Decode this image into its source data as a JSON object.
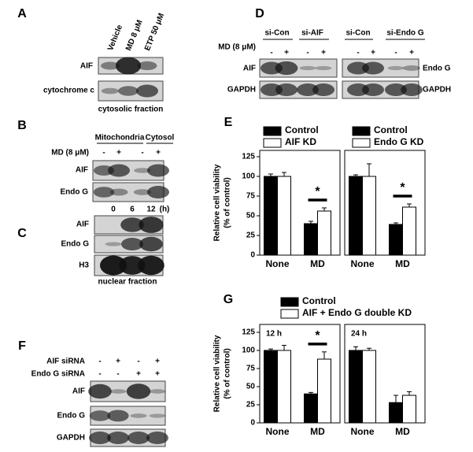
{
  "panels": {
    "A": {
      "label": "A",
      "lanes": [
        "Vehicle",
        "MD 8 μM",
        "ETP 50 μM"
      ],
      "rows": [
        "AIF",
        "cytochrome c"
      ],
      "footer": "cytosolic  fraction"
    },
    "B": {
      "label": "B",
      "groups": [
        "Mitochondria",
        "Cytosol"
      ],
      "treatment": "MD (8 μM)",
      "signs": [
        "-",
        "+",
        "-",
        "+"
      ],
      "rows": [
        "AIF",
        "Endo G"
      ]
    },
    "C": {
      "label": "C",
      "times": [
        0,
        6,
        12
      ],
      "unit": "(h)",
      "rows": [
        "AIF",
        "Endo G",
        "H3"
      ],
      "footer": "nuclear fraction"
    },
    "D": {
      "label": "D",
      "groups": [
        "si-Con",
        "si-AIF",
        "si-Con",
        "si-Endo G"
      ],
      "treatment": "MD (8 μM)",
      "signs": [
        "-",
        "+",
        "-",
        "+",
        "-",
        "+",
        "-",
        "+"
      ],
      "left_rows": [
        "AIF",
        "GAPDH"
      ],
      "right_rows": [
        "Endo G",
        "GAPDH"
      ]
    },
    "E": {
      "label": "E"
    },
    "F": {
      "label": "F",
      "treatments": [
        {
          "name": "AIF siRNA",
          "signs": [
            "-",
            "+",
            "-",
            "+"
          ]
        },
        {
          "name": "Endo G siRNA",
          "signs": [
            "-",
            "-",
            "+",
            "+"
          ]
        }
      ],
      "rows": [
        "AIF",
        "Endo G",
        "GAPDH"
      ]
    },
    "G": {
      "label": "G"
    }
  },
  "chart_data": [
    {
      "type": "bar",
      "ylabel": [
        "Relative cell viability",
        "(% of control)"
      ],
      "categories": [
        "None",
        "MD"
      ],
      "ylim": [
        0,
        125
      ],
      "yticks": [
        0,
        25,
        50,
        75,
        100,
        125
      ],
      "series": [
        {
          "name": "Control",
          "color": "#000000",
          "values": [
            100,
            40
          ],
          "errors": [
            3,
            3
          ]
        },
        {
          "name": "AIF KD",
          "color": "#ffffff",
          "values": [
            100,
            56
          ],
          "errors": [
            5,
            4
          ]
        }
      ],
      "annotations": [
        "*"
      ]
    },
    {
      "type": "bar",
      "categories": [
        "None",
        "MD"
      ],
      "ylim": [
        0,
        125
      ],
      "series": [
        {
          "name": "Control",
          "color": "#000000",
          "values": [
            100,
            39
          ],
          "errors": [
            2,
            2
          ]
        },
        {
          "name": "Endo G KD",
          "color": "#ffffff",
          "values": [
            100,
            61
          ],
          "errors": [
            16,
            4
          ]
        }
      ],
      "annotations": [
        "*"
      ]
    },
    {
      "type": "bar",
      "ylabel": [
        "Relative cell viability",
        "(% of control)"
      ],
      "subtitle": "12 h",
      "categories": [
        "None",
        "MD"
      ],
      "ylim": [
        0,
        125
      ],
      "yticks": [
        0,
        25,
        50,
        75,
        100,
        125
      ],
      "series": [
        {
          "name": "Control",
          "color": "#000000",
          "values": [
            100,
            40
          ],
          "errors": [
            2,
            2
          ]
        },
        {
          "name": "AIF + Endo G double KD",
          "color": "#ffffff",
          "values": [
            100,
            88
          ],
          "errors": [
            7,
            10
          ]
        }
      ],
      "annotations": [
        "*"
      ]
    },
    {
      "type": "bar",
      "subtitle": "24 h",
      "categories": [
        "None",
        "MD"
      ],
      "ylim": [
        0,
        125
      ],
      "series": [
        {
          "color": "#000000",
          "values": [
            100,
            28
          ],
          "errors": [
            5,
            10
          ]
        },
        {
          "color": "#ffffff",
          "values": [
            100,
            38
          ],
          "errors": [
            3,
            5
          ]
        }
      ]
    }
  ]
}
